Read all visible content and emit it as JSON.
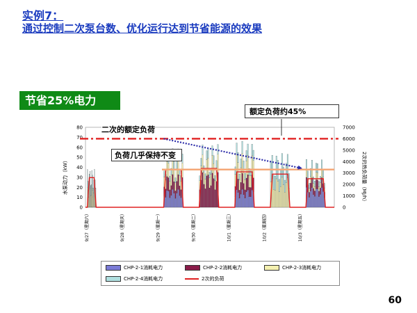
{
  "header": {
    "title_line1": "实例7：",
    "title_line2": "通过控制二次泵台数、优化运行达到节省能源的效果"
  },
  "badge": {
    "text": "节省25%电力",
    "color": "#0f8a16"
  },
  "callouts": {
    "rated_load_ratio": "额定负荷约45%",
    "secondary_rated_load": "二次的额定负荷",
    "load_unchanged": "负荷几乎保持不变"
  },
  "page_number": "60",
  "chart_data": {
    "type": "bar",
    "ylabel_left": "水泵动力（kW）",
    "ylabel_right": "2次的热负荷量（MJ/h）",
    "y_ticks_left": [
      "0",
      "10",
      "20",
      "30",
      "40",
      "50",
      "60",
      "70",
      "80"
    ],
    "y_ticks_right": [
      "0",
      "1000",
      "2000",
      "3000",
      "4000",
      "5000",
      "6000",
      "7000"
    ],
    "ylim_left": [
      0,
      80
    ],
    "ylim_right": [
      0,
      7000
    ],
    "x_ticks": [
      "9/27（星期六）",
      "9/28（星期天）",
      "9/29（星期一）",
      "9/30（星期二）",
      "10/1（星期三）",
      "10/2（星期四）",
      "10/3（星期五）"
    ],
    "rated_load_line": {
      "value_right": 6000,
      "color": "#e02020"
    },
    "reference_line": {
      "value_right": 3300,
      "color": "#f4a878"
    },
    "trend_arrow": {
      "from": {
        "day": 2.2,
        "value_right": 6000
      },
      "to": {
        "day": 6.1,
        "value_right": 3400
      },
      "color": "#2b2ba8"
    },
    "series": [
      {
        "name": "CHP-2-1消耗电力",
        "color": "#7b7bd6"
      },
      {
        "name": "CHP-2-2消耗电力",
        "color": "#8a1c4a"
      },
      {
        "name": "CHP-2-3消耗电力",
        "color": "#f4f0b0"
      },
      {
        "name": "CHP-2-4消耗电力",
        "color": "#b0e0e0"
      },
      {
        "name": "2次的负荷",
        "color": "#e02020"
      }
    ],
    "daily_operation": [
      {
        "day": "9/27",
        "start": 0.05,
        "end": 0.3,
        "stack": [
          0,
          0,
          20,
          18
        ],
        "load": 2600
      },
      {
        "day": "9/28",
        "start": 0,
        "end": 0,
        "stack": [
          0,
          0,
          0,
          0
        ],
        "load": 0
      },
      {
        "day": "9/29",
        "start": 0.2,
        "end": 0.75,
        "stack": [
          18,
          15,
          16,
          10
        ],
        "load": 3300
      },
      {
        "day": "9/30",
        "start": 0.2,
        "end": 0.75,
        "stack": [
          0,
          35,
          18,
          10
        ],
        "load": 3400
      },
      {
        "day": "10/1",
        "start": 0.2,
        "end": 0.75,
        "stack": [
          18,
          16,
          20,
          12
        ],
        "load": 3100
      },
      {
        "day": "10/2",
        "start": 0.2,
        "end": 0.75,
        "stack": [
          0,
          0,
          30,
          24
        ],
        "load": 2900
      },
      {
        "day": "10/3",
        "start": 0.2,
        "end": 0.75,
        "stack": [
          20,
          10,
          8,
          10
        ],
        "load": 2500
      }
    ]
  }
}
